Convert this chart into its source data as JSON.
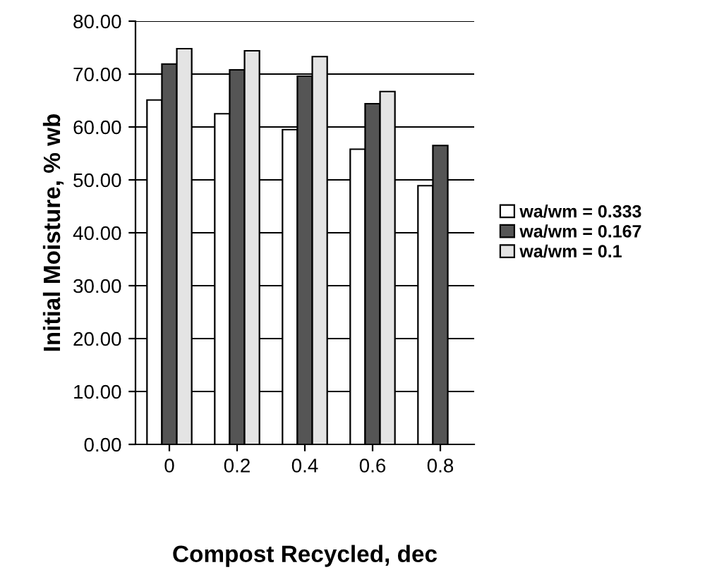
{
  "chart_data": {
    "type": "bar",
    "xlabel": "Compost Recycled, dec",
    "ylabel": "Initial Moisture, % wb",
    "categories": [
      "0",
      "0.2",
      "0.4",
      "0.6",
      "0.8"
    ],
    "series": [
      {
        "name": "wa/wm = 0.333",
        "color": "#ffffff",
        "values": [
          65.1,
          62.5,
          59.5,
          55.8,
          48.9
        ]
      },
      {
        "name": "wa/wm = 0.167",
        "color": "#555555",
        "values": [
          71.9,
          70.8,
          69.6,
          64.4,
          56.5
        ]
      },
      {
        "name": "wa/wm = 0.1",
        "color": "#e4e4e4",
        "values": [
          74.8,
          74.4,
          73.3,
          66.7,
          null
        ]
      }
    ],
    "ylim": [
      0,
      80
    ],
    "yticks": [
      {
        "value": 0,
        "label": "0.00"
      },
      {
        "value": 10,
        "label": "10.00"
      },
      {
        "value": 20,
        "label": "20.00"
      },
      {
        "value": 30,
        "label": "30.00"
      },
      {
        "value": 40,
        "label": "40.00"
      },
      {
        "value": 50,
        "label": "50.00"
      },
      {
        "value": 60,
        "label": "60.00"
      },
      {
        "value": 70,
        "label": "70.00"
      },
      {
        "value": 80,
        "label": "80.00"
      }
    ],
    "grid": "y",
    "legend": "right"
  }
}
